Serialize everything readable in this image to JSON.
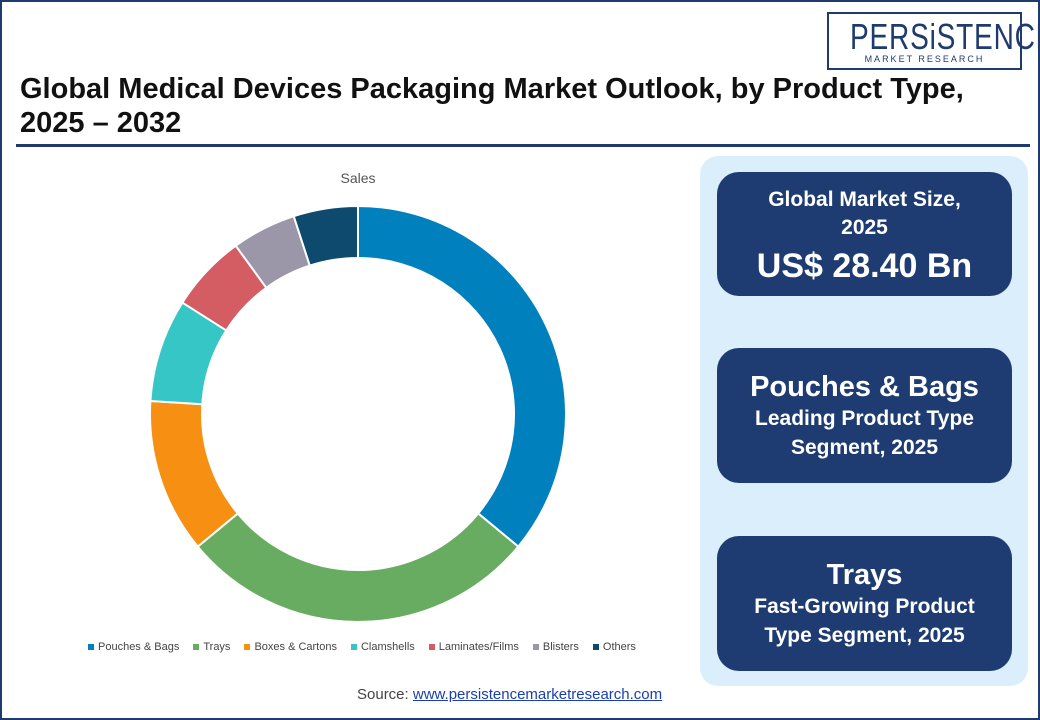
{
  "logo": {
    "main": "PERSiSTENCE",
    "sub": "MARKET RESEARCH"
  },
  "title": "Global Medical Devices Packaging Market Outlook, by Product Type, 2025 – 2032",
  "chart_data": {
    "type": "pie",
    "variant": "donut",
    "title": "Sales",
    "categories": [
      "Pouches & Bags",
      "Trays",
      "Boxes & Cartons",
      "Clamshells",
      "Laminates/Films",
      "Blisters",
      "Others"
    ],
    "values": [
      36,
      28,
      12,
      8,
      6,
      5,
      5
    ],
    "colors": [
      "#0080bd",
      "#68ac61",
      "#f68f12",
      "#36c6c6",
      "#d45c63",
      "#9b96a8",
      "#0d4a6e"
    ],
    "legend_position": "bottom"
  },
  "source": {
    "label": "Source:",
    "link_text": "www.persistencemarketresearch.com"
  },
  "cards": [
    {
      "line1": "Global Market Size,",
      "line2": "2025",
      "value": "US$ 28.40 Bn"
    },
    {
      "head": "Pouches & Bags",
      "sub1": "Leading Product Type",
      "sub2": "Segment, 2025"
    },
    {
      "head": "Trays",
      "sub1": "Fast-Growing Product",
      "sub2": "Type Segment, 2025"
    }
  ]
}
